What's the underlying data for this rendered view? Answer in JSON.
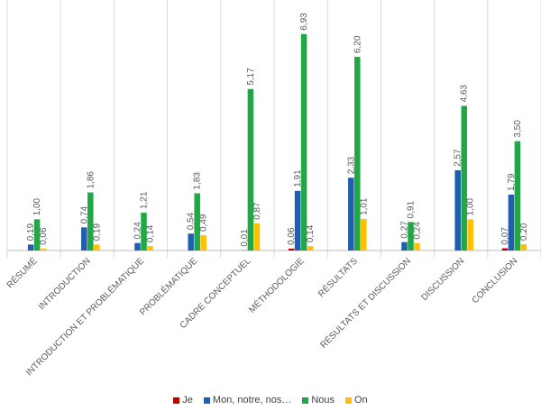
{
  "chart_data": {
    "type": "bar",
    "title": "",
    "xlabel": "",
    "ylabel": "",
    "ylim": [
      0,
      7.5
    ],
    "grid": "vertical category separators",
    "legend_position": "bottom",
    "categories": [
      "RÉSUMÉ",
      "INTRODUCTION",
      "INTRODUCTION ET PROBLÉMATIQUE",
      "PROBLÉMATIQUE",
      "CADRE CONCEPTUEL",
      "MÉTHODOLOGIE",
      "RÉSULTATS",
      "RÉSULTATS ET DISCUSSION",
      "DISCUSSION",
      "CONCLUSION"
    ],
    "series": [
      {
        "name": "Je",
        "color": "#c00000",
        "values": [
          0,
          0,
          0,
          0,
          0,
          0.06,
          0,
          0,
          0,
          0.07
        ],
        "labels": [
          "",
          "",
          "",
          "",
          "",
          "0,06",
          "",
          "",
          "",
          "0,07"
        ]
      },
      {
        "name": "Mon, notre, nos…",
        "color": "#1f5fad",
        "values": [
          0.19,
          0.74,
          0.24,
          0.54,
          0.01,
          1.91,
          2.33,
          0.27,
          2.57,
          1.79
        ],
        "labels": [
          "0,19",
          "0,74",
          "0,24",
          "0,54",
          "0,01",
          "1,91",
          "2,33",
          "0,27",
          "2,57",
          "1,79"
        ]
      },
      {
        "name": "Nous",
        "color": "#1fa845",
        "values": [
          1.0,
          1.86,
          1.21,
          1.83,
          5.17,
          6.93,
          6.2,
          0.91,
          4.63,
          3.5
        ],
        "labels": [
          "1,00",
          "1,86",
          "1,21",
          "1,83",
          "5,17",
          "6,93",
          "6,20",
          "0,91",
          "4,63",
          "3,50"
        ]
      },
      {
        "name": "On",
        "color": "#ffc000",
        "values": [
          0.06,
          0.19,
          0.14,
          0.49,
          0.87,
          0.14,
          1.01,
          0.24,
          1.0,
          0.2
        ],
        "labels": [
          "0,06",
          "0,19",
          "0,14",
          "0,49",
          "0,87",
          "0,14",
          "1,01",
          "0,24",
          "1,00",
          "0,20"
        ]
      }
    ]
  }
}
